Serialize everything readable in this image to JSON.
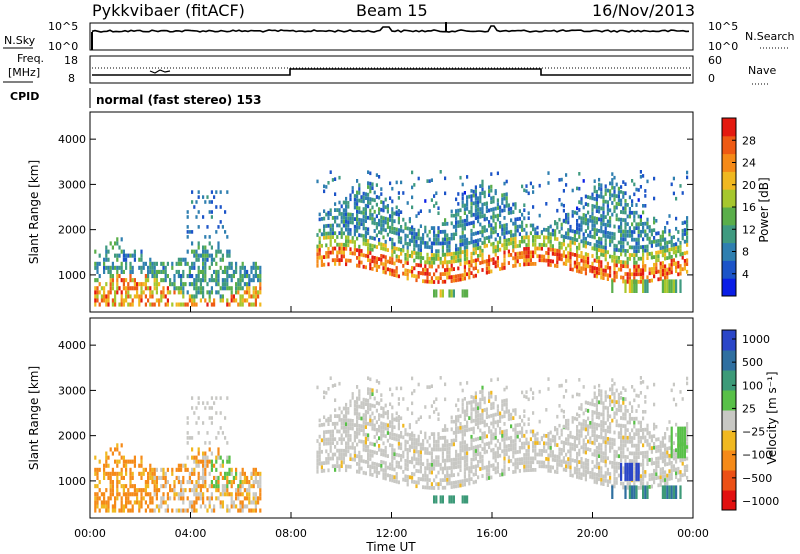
{
  "header": {
    "station": "Pykkvibaer (fitACF)",
    "beam": "Beam 15",
    "date": "16/Nov/2013"
  },
  "noise_panel": {
    "left_label": "N.Sky",
    "right_label": "N.Search",
    "left_ticks": [
      "10^5",
      "10^0"
    ],
    "right_ticks": [
      "10^5",
      "10^0"
    ]
  },
  "freq_panel": {
    "left_label_line1": "Freq.",
    "left_label_line2": "[MHz]",
    "right_label": "Nave",
    "left_ticks": [
      "18",
      "8"
    ],
    "right_ticks": [
      "60",
      "0"
    ]
  },
  "cpid_panel": {
    "label": "CPID",
    "text": "normal (fast stereo) 153"
  },
  "chart_data": [
    {
      "type": "heatmap",
      "quantity": "Power",
      "ylabel": "Slant Range [km]",
      "ylim": [
        180,
        4600
      ],
      "yticks": [
        "4000",
        "3000",
        "2000",
        "1000"
      ],
      "xlim": [
        "00:00",
        "24:00"
      ],
      "colorbar": {
        "label": "Power [dB]",
        "ticks": [
          "28",
          "24",
          "20",
          "16",
          "12",
          "8",
          "4"
        ],
        "range": [
          0,
          32
        ],
        "colors": [
          "#0a1ee6",
          "#1c54c8",
          "#2f7fb0",
          "#3f9a80",
          "#5aae4a",
          "#a6c72e",
          "#f0b820",
          "#f58a18",
          "#ee5a14",
          "#e41a10"
        ]
      },
      "echo_regions": [
        {
          "t_start": "00:10",
          "t_end": "06:50",
          "range_km": [
            500,
            1700
          ],
          "peak_power_db": 30
        },
        {
          "t_start": "09:00",
          "t_end": "23:50",
          "range_km": [
            900,
            3300
          ],
          "peak_power_db": 30
        }
      ]
    },
    {
      "type": "heatmap",
      "quantity": "Velocity",
      "ylabel": "Slant Range [km]",
      "xlabel": "Time UT",
      "ylim": [
        180,
        4600
      ],
      "yticks": [
        "4000",
        "3000",
        "2000",
        "1000"
      ],
      "xticks": [
        "00:00",
        "04:00",
        "08:00",
        "12:00",
        "16:00",
        "20:00",
        "00:00"
      ],
      "colorbar": {
        "label": "Velocity [m s⁻¹]",
        "ticks": [
          "1000",
          "500",
          "100",
          "25",
          "−25",
          "−100",
          "−500",
          "−1000"
        ],
        "colors": [
          "#2b46c8",
          "#2f6fa0",
          "#3c9a78",
          "#58c048",
          "#c8c8c4",
          "#f0b820",
          "#f58a18",
          "#ec5016",
          "#e21010"
        ]
      }
    }
  ]
}
